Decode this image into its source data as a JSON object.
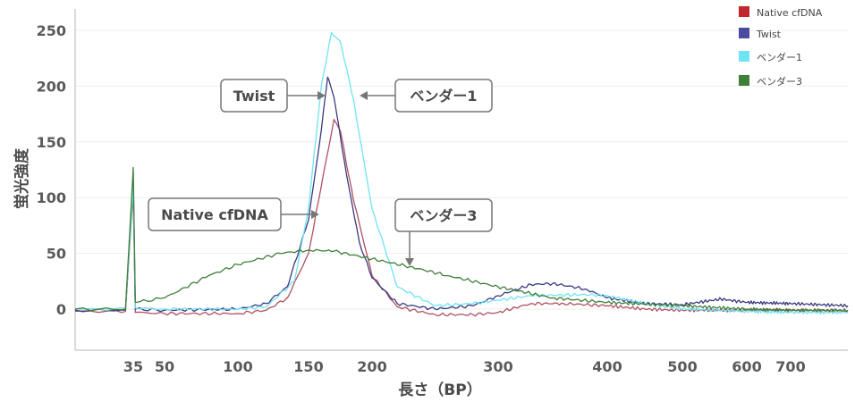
{
  "chart_data": {
    "type": "line",
    "xlabel": "長さ（BP）",
    "ylabel": "蛍光強度",
    "ylim": [
      -35,
      265
    ],
    "y_ticks": [
      "0",
      "50",
      "100",
      "150",
      "200",
      "250"
    ],
    "x_ticks": [
      "35",
      "50",
      "100",
      "150",
      "200",
      "300",
      "400",
      "500",
      "600",
      "700"
    ],
    "legend": [
      {
        "label": "Native cfDNA",
        "color": "#c0282d"
      },
      {
        "label": "Twist",
        "color": "#4a4aa0"
      },
      {
        "label": "ベンダー1",
        "color": "#6fe3f2"
      },
      {
        "label": "ベンダー3",
        "color": "#3f7f3a"
      }
    ],
    "annotations": [
      "Twist",
      "ベンダー1",
      "Native cfDNA",
      "ベンダー3"
    ],
    "series": [
      {
        "name": "Native cfDNA",
        "color": "#b05060",
        "points": [
          [
            20,
            -2
          ],
          [
            33,
            -2
          ],
          [
            35,
            105
          ],
          [
            36,
            -3
          ],
          [
            50,
            -4
          ],
          [
            100,
            -4
          ],
          [
            120,
            -1
          ],
          [
            135,
            10
          ],
          [
            150,
            50
          ],
          [
            160,
            110
          ],
          [
            170,
            170
          ],
          [
            175,
            160
          ],
          [
            185,
            100
          ],
          [
            200,
            30
          ],
          [
            220,
            2
          ],
          [
            250,
            -5
          ],
          [
            280,
            -5
          ],
          [
            300,
            -3
          ],
          [
            330,
            5
          ],
          [
            360,
            5
          ],
          [
            400,
            3
          ],
          [
            450,
            0
          ],
          [
            500,
            -1
          ],
          [
            600,
            -1
          ],
          [
            700,
            -1
          ],
          [
            800,
            -2
          ]
        ]
      },
      {
        "name": "Twist",
        "color": "#3a3a80",
        "points": [
          [
            20,
            -1
          ],
          [
            33,
            -1
          ],
          [
            35,
            115
          ],
          [
            36,
            0
          ],
          [
            50,
            -1
          ],
          [
            100,
            0
          ],
          [
            120,
            5
          ],
          [
            135,
            20
          ],
          [
            150,
            80
          ],
          [
            160,
            160
          ],
          [
            165,
            208
          ],
          [
            170,
            190
          ],
          [
            180,
            120
          ],
          [
            190,
            60
          ],
          [
            200,
            28
          ],
          [
            220,
            5
          ],
          [
            250,
            0
          ],
          [
            280,
            3
          ],
          [
            300,
            12
          ],
          [
            330,
            22
          ],
          [
            350,
            23
          ],
          [
            380,
            18
          ],
          [
            400,
            10
          ],
          [
            450,
            5
          ],
          [
            500,
            4
          ],
          [
            560,
            9
          ],
          [
            600,
            6
          ],
          [
            700,
            5
          ],
          [
            800,
            3
          ]
        ]
      },
      {
        "name": "ベンダー1",
        "color": "#6fe3f2",
        "points": [
          [
            20,
            0
          ],
          [
            33,
            0
          ],
          [
            35,
            112
          ],
          [
            36,
            1
          ],
          [
            50,
            0
          ],
          [
            100,
            0
          ],
          [
            120,
            2
          ],
          [
            140,
            25
          ],
          [
            150,
            90
          ],
          [
            160,
            200
          ],
          [
            168,
            248
          ],
          [
            175,
            240
          ],
          [
            185,
            190
          ],
          [
            200,
            90
          ],
          [
            220,
            20
          ],
          [
            250,
            3
          ],
          [
            280,
            5
          ],
          [
            300,
            8
          ],
          [
            330,
            12
          ],
          [
            380,
            13
          ],
          [
            400,
            12
          ],
          [
            450,
            5
          ],
          [
            500,
            0
          ],
          [
            600,
            -2
          ],
          [
            700,
            -3
          ],
          [
            800,
            -3
          ]
        ]
      },
      {
        "name": "ベンダー3",
        "color": "#3f7f3a",
        "points": [
          [
            20,
            0
          ],
          [
            33,
            0
          ],
          [
            35,
            127
          ],
          [
            36,
            6
          ],
          [
            50,
            10
          ],
          [
            80,
            30
          ],
          [
            100,
            40
          ],
          [
            130,
            50
          ],
          [
            150,
            53
          ],
          [
            170,
            52
          ],
          [
            200,
            45
          ],
          [
            230,
            38
          ],
          [
            260,
            30
          ],
          [
            300,
            20
          ],
          [
            350,
            10
          ],
          [
            400,
            6
          ],
          [
            500,
            3
          ],
          [
            600,
            0
          ],
          [
            700,
            -1
          ],
          [
            800,
            -1
          ]
        ]
      }
    ]
  }
}
